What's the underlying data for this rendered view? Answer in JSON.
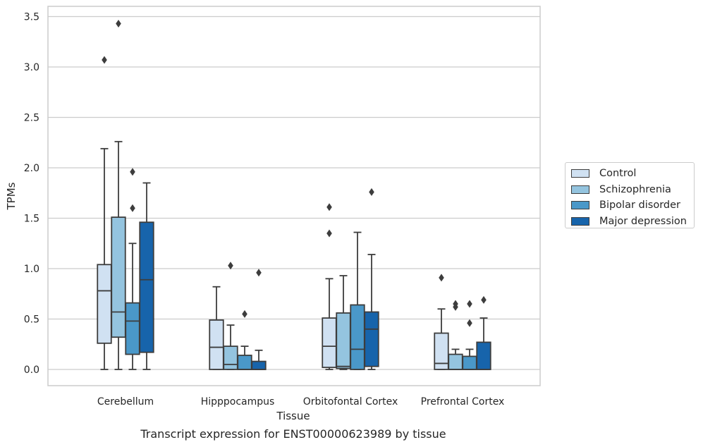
{
  "caption": "Transcript expression for ENST00000623989 by tissue",
  "chart_data": {
    "type": "boxplot",
    "title": "",
    "xlabel": "Tissue",
    "ylabel": "TPMs",
    "ylim": [
      -0.17,
      3.6
    ],
    "yticks": [
      0.0,
      0.5,
      1.0,
      1.5,
      2.0,
      2.5,
      3.0,
      3.5
    ],
    "ytick_labels": [
      "0.0",
      "0.5",
      "1.0",
      "1.5",
      "2.0",
      "2.5",
      "3.0",
      "3.5"
    ],
    "grid": "horizontal",
    "legend_position": "right",
    "categories": [
      "Cerebellum",
      "Hipppocampus",
      "Orbitofontal Cortex",
      "Prefrontal Cortex"
    ],
    "series": [
      {
        "name": "Control",
        "color": "#d0e1f2",
        "boxes": [
          {
            "whisker_low": 0.0,
            "q1": 0.26,
            "median": 0.78,
            "q3": 1.04,
            "whisker_high": 2.19,
            "outliers": [
              3.07
            ]
          },
          {
            "whisker_low": 0.0,
            "q1": 0.0,
            "median": 0.22,
            "q3": 0.49,
            "whisker_high": 0.82,
            "outliers": []
          },
          {
            "whisker_low": 0.0,
            "q1": 0.02,
            "median": 0.23,
            "q3": 0.51,
            "whisker_high": 0.9,
            "outliers": [
              1.35,
              1.61
            ]
          },
          {
            "whisker_low": 0.0,
            "q1": 0.0,
            "median": 0.06,
            "q3": 0.36,
            "whisker_high": 0.6,
            "outliers": [
              0.91
            ]
          }
        ]
      },
      {
        "name": "Schizophrenia",
        "color": "#94c4df",
        "boxes": [
          {
            "whisker_low": 0.0,
            "q1": 0.32,
            "median": 0.57,
            "q3": 1.51,
            "whisker_high": 2.26,
            "outliers": [
              3.43
            ]
          },
          {
            "whisker_low": 0.0,
            "q1": 0.0,
            "median": 0.05,
            "q3": 0.23,
            "whisker_high": 0.44,
            "outliers": [
              1.03
            ]
          },
          {
            "whisker_low": 0.0,
            "q1": 0.01,
            "median": 0.03,
            "q3": 0.56,
            "whisker_high": 0.93,
            "outliers": []
          },
          {
            "whisker_low": 0.0,
            "q1": 0.0,
            "median": 0.0,
            "q3": 0.15,
            "whisker_high": 0.2,
            "outliers": [
              0.62,
              0.65
            ]
          }
        ]
      },
      {
        "name": "Bipolar disorder",
        "color": "#4a98c9",
        "boxes": [
          {
            "whisker_low": 0.0,
            "q1": 0.15,
            "median": 0.48,
            "q3": 0.66,
            "whisker_high": 1.25,
            "outliers": [
              1.6,
              1.96
            ]
          },
          {
            "whisker_low": 0.0,
            "q1": 0.0,
            "median": 0.0,
            "q3": 0.14,
            "whisker_high": 0.23,
            "outliers": [
              0.55
            ]
          },
          {
            "whisker_low": 0.0,
            "q1": 0.0,
            "median": 0.2,
            "q3": 0.64,
            "whisker_high": 1.36,
            "outliers": []
          },
          {
            "whisker_low": 0.0,
            "q1": 0.0,
            "median": 0.0,
            "q3": 0.13,
            "whisker_high": 0.2,
            "outliers": [
              0.46,
              0.65
            ]
          }
        ]
      },
      {
        "name": "Major depression",
        "color": "#1764ab",
        "boxes": [
          {
            "whisker_low": 0.0,
            "q1": 0.17,
            "median": 0.89,
            "q3": 1.46,
            "whisker_high": 1.85,
            "outliers": []
          },
          {
            "whisker_low": 0.0,
            "q1": 0.0,
            "median": 0.0,
            "q3": 0.08,
            "whisker_high": 0.19,
            "outliers": [
              0.96
            ]
          },
          {
            "whisker_low": 0.0,
            "q1": 0.03,
            "median": 0.4,
            "q3": 0.57,
            "whisker_high": 1.14,
            "outliers": [
              1.76
            ]
          },
          {
            "whisker_low": 0.0,
            "q1": 0.0,
            "median": 0.0,
            "q3": 0.27,
            "whisker_high": 0.51,
            "outliers": [
              0.69
            ]
          }
        ]
      }
    ]
  }
}
